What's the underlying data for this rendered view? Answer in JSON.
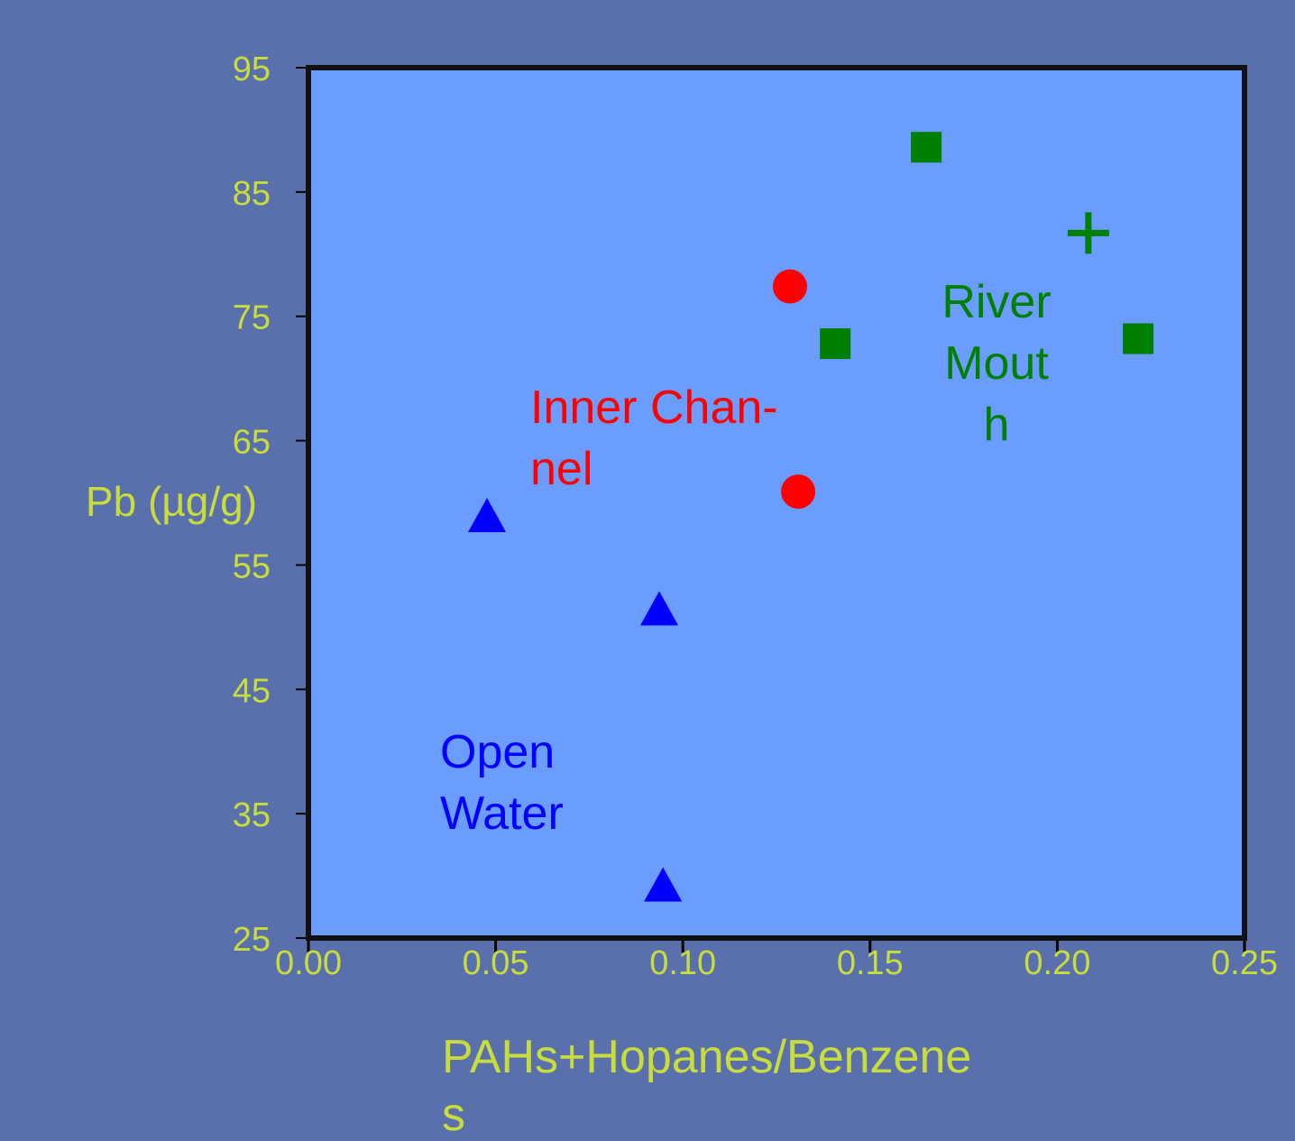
{
  "chart_data": {
    "type": "scatter",
    "ylabel": "Pb (µg/g)",
    "xlabel": "PAHs+Hopanes/Benzene\ns",
    "xlim": [
      0,
      0.25
    ],
    "xticks": [
      {
        "value": 0,
        "label": "0.00"
      },
      0.05,
      {
        "value": 0.1,
        "label": "0.10"
      },
      0.15,
      {
        "value": 0.2,
        "label": "0.20"
      },
      0.25
    ],
    "ylim": [
      25,
      95
    ],
    "yticks": [
      25,
      35,
      45,
      55,
      65,
      75,
      85,
      95
    ],
    "series": [
      {
        "marker": "square",
        "color": "#008000",
        "x": [
          0.165,
          0.1407,
          0.2216
        ],
        "values": [
          88.6,
          72.8,
          73.2
        ]
      },
      {
        "marker": "plus",
        "color": "#008000",
        "x": [
          0.2083
        ],
        "values": [
          81.7
        ]
      },
      {
        "marker": "circle",
        "color": "#ff0000",
        "x": [
          0.1286,
          0.1308
        ],
        "values": [
          77.4,
          60.9
        ]
      },
      {
        "marker": "triangle",
        "color": "#0000ff",
        "x": [
          0.0477,
          0.0937,
          0.0947
        ],
        "values": [
          58.8,
          51.3,
          29.1
        ]
      }
    ],
    "annotations": [
      {
        "text": "Inner Chan-\nnel",
        "color": "#ff0000"
      },
      {
        "text": "River\nMout\nh",
        "color": "#008000"
      },
      {
        "text": "Open\nWater",
        "color": "#0000ff"
      }
    ]
  }
}
